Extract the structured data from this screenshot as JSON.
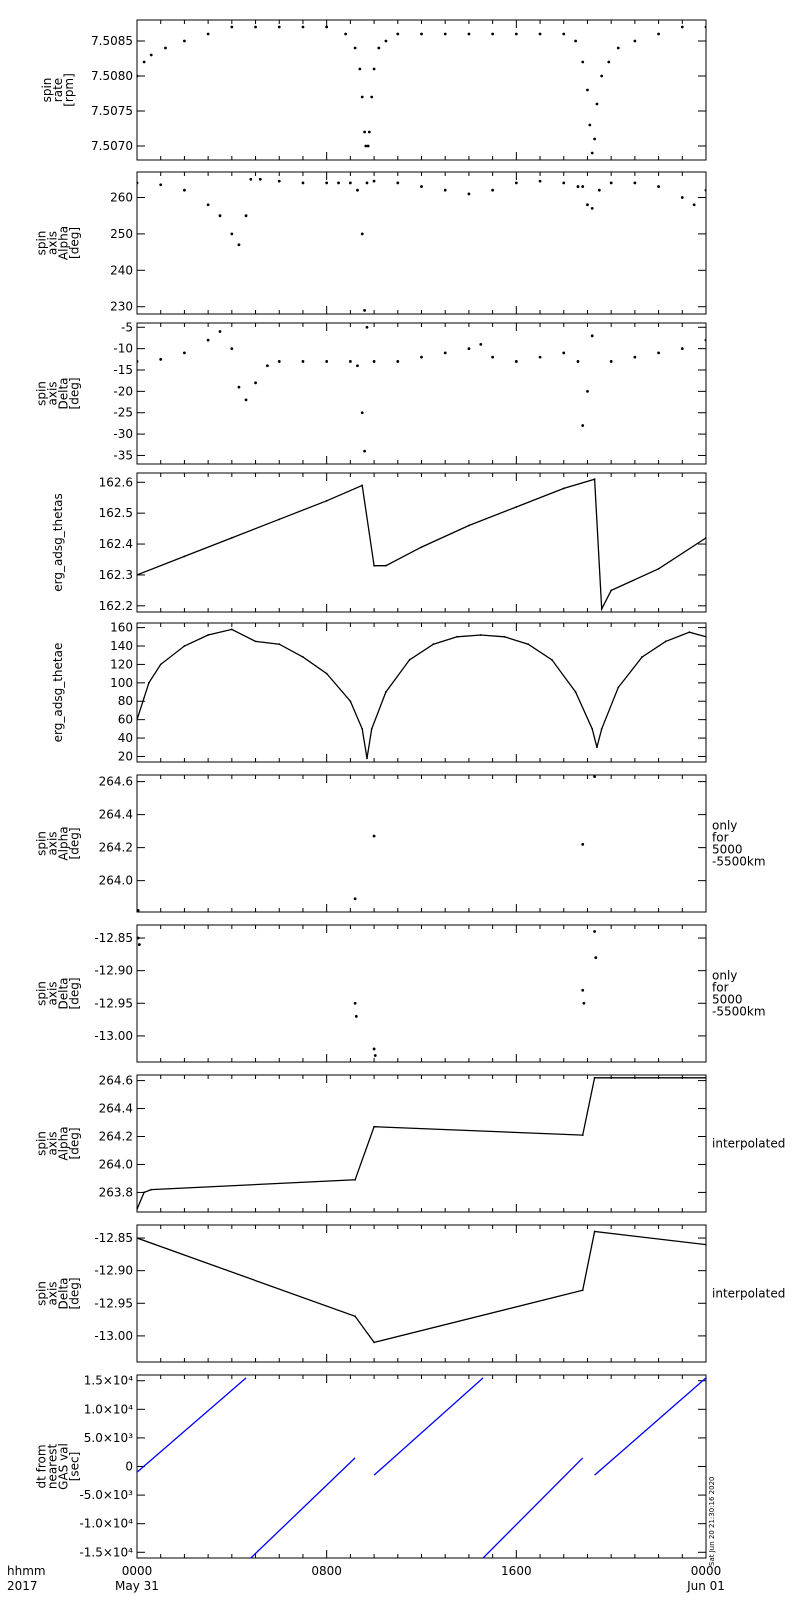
{
  "figure": {
    "time_axis": {
      "left_labels": [
        "hhmm",
        "2017"
      ],
      "ticks": [
        {
          "hour": 0,
          "lines": [
            "0000",
            "May 31"
          ]
        },
        {
          "hour": 8,
          "lines": [
            "0800",
            ""
          ]
        },
        {
          "hour": 16,
          "lines": [
            "1600",
            ""
          ]
        },
        {
          "hour": 24,
          "lines": [
            "0000",
            "Jun 01"
          ]
        }
      ],
      "range_hours": [
        0,
        24
      ]
    },
    "stamp": "Sat Jun 20 21:30:16 2020"
  },
  "chart_data": [
    {
      "type": "scatter",
      "ylabel_lines": [
        "spin",
        "rate",
        "[rpm]"
      ],
      "side_label": [],
      "ylim": [
        7.5068,
        7.5088
      ],
      "yticks": [
        7.507,
        7.5075,
        7.508,
        7.5085
      ],
      "ytick_labels": [
        "7.5070",
        "7.5075",
        "7.5080",
        "7.5085"
      ],
      "color": "#000000",
      "points": [
        [
          0.0,
          7.508
        ],
        [
          0.3,
          7.5082
        ],
        [
          0.6,
          7.5083
        ],
        [
          1.2,
          7.5084
        ],
        [
          2.0,
          7.5085
        ],
        [
          3.0,
          7.5086
        ],
        [
          4.0,
          7.5087
        ],
        [
          5.0,
          7.5087
        ],
        [
          6.0,
          7.5087
        ],
        [
          7.0,
          7.5087
        ],
        [
          8.0,
          7.5087
        ],
        [
          8.8,
          7.5086
        ],
        [
          9.2,
          7.5084
        ],
        [
          9.4,
          7.5081
        ],
        [
          9.5,
          7.5077
        ],
        [
          9.6,
          7.5072
        ],
        [
          9.65,
          7.507
        ],
        [
          9.75,
          7.507
        ],
        [
          9.8,
          7.5072
        ],
        [
          9.9,
          7.5077
        ],
        [
          10.0,
          7.5081
        ],
        [
          10.2,
          7.5084
        ],
        [
          10.5,
          7.5085
        ],
        [
          11.0,
          7.5086
        ],
        [
          12.0,
          7.5086
        ],
        [
          13.0,
          7.5086
        ],
        [
          14.0,
          7.5086
        ],
        [
          15.0,
          7.5086
        ],
        [
          16.0,
          7.5086
        ],
        [
          17.0,
          7.5086
        ],
        [
          18.0,
          7.5086
        ],
        [
          18.5,
          7.5085
        ],
        [
          18.8,
          7.5082
        ],
        [
          19.0,
          7.5078
        ],
        [
          19.1,
          7.5073
        ],
        [
          19.2,
          7.5069
        ],
        [
          19.3,
          7.5071
        ],
        [
          19.4,
          7.5076
        ],
        [
          19.6,
          7.508
        ],
        [
          19.9,
          7.5082
        ],
        [
          20.3,
          7.5084
        ],
        [
          21.0,
          7.5085
        ],
        [
          22.0,
          7.5086
        ],
        [
          23.0,
          7.5087
        ],
        [
          24.0,
          7.5087
        ]
      ]
    },
    {
      "type": "scatter",
      "ylabel_lines": [
        "spin",
        "axis",
        "Alpha",
        "[deg]"
      ],
      "side_label": [],
      "ylim": [
        228,
        267
      ],
      "yticks": [
        230,
        240,
        250,
        260
      ],
      "ytick_labels": [
        "230",
        "240",
        "250",
        "260"
      ],
      "color": "#000000",
      "points": [
        [
          0.0,
          264
        ],
        [
          1.0,
          263.5
        ],
        [
          2.0,
          262
        ],
        [
          3.0,
          258
        ],
        [
          3.5,
          255
        ],
        [
          4.0,
          250
        ],
        [
          4.3,
          247
        ],
        [
          4.6,
          255
        ],
        [
          4.8,
          265
        ],
        [
          5.2,
          265
        ],
        [
          6.0,
          264.5
        ],
        [
          7.0,
          264
        ],
        [
          8.0,
          264
        ],
        [
          8.5,
          264
        ],
        [
          9.0,
          264
        ],
        [
          9.3,
          262
        ],
        [
          9.5,
          250
        ],
        [
          9.6,
          229
        ],
        [
          9.7,
          264
        ],
        [
          10.0,
          264.5
        ],
        [
          11.0,
          264
        ],
        [
          12.0,
          263
        ],
        [
          13.0,
          262
        ],
        [
          14.0,
          261
        ],
        [
          15.0,
          262
        ],
        [
          16.0,
          264
        ],
        [
          17.0,
          264.5
        ],
        [
          18.0,
          264
        ],
        [
          18.6,
          263
        ],
        [
          18.8,
          263
        ],
        [
          19.0,
          258
        ],
        [
          19.2,
          257
        ],
        [
          19.5,
          262
        ],
        [
          20.0,
          264
        ],
        [
          21.0,
          264
        ],
        [
          22.0,
          263
        ],
        [
          23.0,
          260
        ],
        [
          23.5,
          258
        ],
        [
          24.0,
          262
        ]
      ]
    },
    {
      "type": "scatter",
      "ylabel_lines": [
        "spin",
        "axis",
        "Delta",
        "[deg]"
      ],
      "side_label": [],
      "ylim": [
        -37,
        -4
      ],
      "yticks": [
        -35,
        -30,
        -25,
        -20,
        -15,
        -10,
        -5
      ],
      "ytick_labels": [
        "-35",
        "-30",
        "-25",
        "-20",
        "-15",
        "-10",
        "-5"
      ],
      "color": "#000000",
      "points": [
        [
          0.0,
          -13
        ],
        [
          1.0,
          -12.5
        ],
        [
          2.0,
          -11
        ],
        [
          3.0,
          -8
        ],
        [
          3.5,
          -6
        ],
        [
          4.0,
          -10
        ],
        [
          4.3,
          -19
        ],
        [
          4.6,
          -22
        ],
        [
          5.0,
          -18
        ],
        [
          5.5,
          -14
        ],
        [
          6.0,
          -13
        ],
        [
          7.0,
          -13
        ],
        [
          8.0,
          -13
        ],
        [
          9.0,
          -13
        ],
        [
          9.3,
          -14
        ],
        [
          9.5,
          -25
        ],
        [
          9.6,
          -34
        ],
        [
          9.7,
          -5
        ],
        [
          10.0,
          -13
        ],
        [
          11.0,
          -13
        ],
        [
          12.0,
          -12
        ],
        [
          13.0,
          -11
        ],
        [
          14.0,
          -10
        ],
        [
          14.5,
          -9
        ],
        [
          15.0,
          -12
        ],
        [
          16.0,
          -13
        ],
        [
          17.0,
          -12
        ],
        [
          18.0,
          -11
        ],
        [
          18.6,
          -13
        ],
        [
          18.8,
          -28
        ],
        [
          19.0,
          -20
        ],
        [
          19.2,
          -7
        ],
        [
          20.0,
          -13
        ],
        [
          21.0,
          -12
        ],
        [
          22.0,
          -11
        ],
        [
          23.0,
          -10
        ],
        [
          24.0,
          -8
        ]
      ]
    },
    {
      "type": "line",
      "ylabel_lines": [
        "erg_adsg_thetas"
      ],
      "side_label": [],
      "ylim": [
        162.18,
        162.63
      ],
      "yticks": [
        162.2,
        162.3,
        162.4,
        162.5,
        162.6
      ],
      "ytick_labels": [
        "162.2",
        "162.3",
        "162.4",
        "162.5",
        "162.6"
      ],
      "color": "#000000",
      "points": [
        [
          0.0,
          162.3
        ],
        [
          2.0,
          162.36
        ],
        [
          4.0,
          162.42
        ],
        [
          6.0,
          162.48
        ],
        [
          8.0,
          162.54
        ],
        [
          9.5,
          162.59
        ],
        [
          10.0,
          162.33
        ],
        [
          10.5,
          162.33
        ],
        [
          12.0,
          162.39
        ],
        [
          14.0,
          162.46
        ],
        [
          16.0,
          162.52
        ],
        [
          18.0,
          162.58
        ],
        [
          19.3,
          162.61
        ],
        [
          19.6,
          162.19
        ],
        [
          20.0,
          162.25
        ],
        [
          22.0,
          162.32
        ],
        [
          24.0,
          162.42
        ]
      ]
    },
    {
      "type": "line",
      "ylabel_lines": [
        "erg_adsg_thetae"
      ],
      "side_label": [],
      "ylim": [
        14,
        165
      ],
      "yticks": [
        20,
        40,
        60,
        80,
        100,
        120,
        140,
        160
      ],
      "ytick_labels": [
        "20",
        "40",
        "60",
        "80",
        "100",
        "120",
        "140",
        "160"
      ],
      "color": "#000000",
      "points": [
        [
          0.0,
          60
        ],
        [
          0.5,
          100
        ],
        [
          1.0,
          120
        ],
        [
          2.0,
          140
        ],
        [
          3.0,
          152
        ],
        [
          4.0,
          158
        ],
        [
          5.0,
          145
        ],
        [
          6.0,
          142
        ],
        [
          7.0,
          128
        ],
        [
          8.0,
          110
        ],
        [
          9.0,
          80
        ],
        [
          9.5,
          50
        ],
        [
          9.7,
          18
        ],
        [
          9.9,
          50
        ],
        [
          10.5,
          90
        ],
        [
          11.5,
          125
        ],
        [
          12.5,
          142
        ],
        [
          13.5,
          150
        ],
        [
          14.5,
          152
        ],
        [
          15.5,
          150
        ],
        [
          16.5,
          142
        ],
        [
          17.5,
          125
        ],
        [
          18.5,
          90
        ],
        [
          19.2,
          50
        ],
        [
          19.4,
          30
        ],
        [
          19.6,
          50
        ],
        [
          20.3,
          95
        ],
        [
          21.3,
          128
        ],
        [
          22.3,
          145
        ],
        [
          23.3,
          155
        ],
        [
          24.0,
          150
        ]
      ]
    },
    {
      "type": "scatter",
      "ylabel_lines": [
        "spin",
        "axis",
        "Alpha",
        "[deg]"
      ],
      "side_label": [
        "only",
        "for",
        "5000",
        "-5500km"
      ],
      "ylim": [
        263.81,
        264.64
      ],
      "yticks": [
        264.0,
        264.2,
        264.4,
        264.6
      ],
      "ytick_labels": [
        "264.0",
        "264.2",
        "264.4",
        "264.6"
      ],
      "color": "#000000",
      "points": [
        [
          0.05,
          263.82
        ],
        [
          9.2,
          263.89
        ],
        [
          10.0,
          264.27
        ],
        [
          18.8,
          264.22
        ],
        [
          19.3,
          264.63
        ]
      ]
    },
    {
      "type": "scatter",
      "ylabel_lines": [
        "spin",
        "axis",
        "Delta",
        "[deg]"
      ],
      "side_label": [
        "only",
        "for",
        "5000",
        "-5500km"
      ],
      "ylim": [
        -13.04,
        -12.83
      ],
      "yticks": [
        -13.0,
        -12.95,
        -12.9,
        -12.85
      ],
      "ytick_labels": [
        "-13.00",
        "-12.95",
        "-12.90",
        "-12.85"
      ],
      "color": "#000000",
      "points": [
        [
          0.05,
          -12.85
        ],
        [
          0.1,
          -12.86
        ],
        [
          9.2,
          -12.95
        ],
        [
          9.25,
          -12.97
        ],
        [
          10.0,
          -13.02
        ],
        [
          10.05,
          -13.03
        ],
        [
          18.8,
          -12.93
        ],
        [
          18.85,
          -12.95
        ],
        [
          19.3,
          -12.84
        ],
        [
          19.35,
          -12.88
        ]
      ]
    },
    {
      "type": "line",
      "ylabel_lines": [
        "spin",
        "axis",
        "Alpha",
        "[deg]"
      ],
      "side_label": [
        "interpolated"
      ],
      "ylim": [
        263.66,
        264.64
      ],
      "yticks": [
        263.8,
        264.0,
        264.2,
        264.4,
        264.6
      ],
      "ytick_labels": [
        "263.8",
        "264.0",
        "264.2",
        "264.4",
        "264.6"
      ],
      "color": "#000000",
      "points": [
        [
          0.0,
          263.68
        ],
        [
          0.3,
          263.8
        ],
        [
          0.6,
          263.82
        ],
        [
          9.2,
          263.89
        ],
        [
          10.0,
          264.27
        ],
        [
          18.8,
          264.21
        ],
        [
          19.3,
          264.62
        ],
        [
          24.0,
          264.62
        ]
      ]
    },
    {
      "type": "line",
      "ylabel_lines": [
        "spin",
        "axis",
        "Delta",
        "[deg]"
      ],
      "side_label": [
        "interpolated"
      ],
      "ylim": [
        -13.04,
        -12.83
      ],
      "yticks": [
        -13.0,
        -12.95,
        -12.9,
        -12.85
      ],
      "ytick_labels": [
        "-13.00",
        "-12.95",
        "-12.90",
        "-12.85"
      ],
      "color": "#000000",
      "points": [
        [
          0.0,
          -12.85
        ],
        [
          9.2,
          -12.97
        ],
        [
          10.0,
          -13.01
        ],
        [
          18.8,
          -12.93
        ],
        [
          19.3,
          -12.84
        ],
        [
          24.0,
          -12.86
        ]
      ]
    },
    {
      "type": "line",
      "ylabel_lines": [
        "dt from",
        "nearest",
        "GAS val",
        "[sec]"
      ],
      "side_label": [],
      "ylim": [
        -16000,
        16000
      ],
      "yticks": [
        -15000,
        -10000,
        -5000,
        0,
        5000,
        10000,
        15000
      ],
      "ytick_labels": [
        "-1.5×10⁴",
        "-1.0×10⁴",
        "-5.0×10³",
        "0",
        "5.0×10³",
        "1.0×10⁴",
        "1.5×10⁴"
      ],
      "color": "#0000ff",
      "segments": [
        [
          [
            0.0,
            -1000
          ],
          [
            4.6,
            15500
          ]
        ],
        [
          [
            4.8,
            -16000
          ],
          [
            9.2,
            1500
          ]
        ],
        [
          [
            10.0,
            -1500
          ],
          [
            14.6,
            15500
          ]
        ],
        [
          [
            14.6,
            -16000
          ],
          [
            18.8,
            1500
          ]
        ],
        [
          [
            19.3,
            -1500
          ],
          [
            24.0,
            15500
          ]
        ]
      ]
    }
  ]
}
